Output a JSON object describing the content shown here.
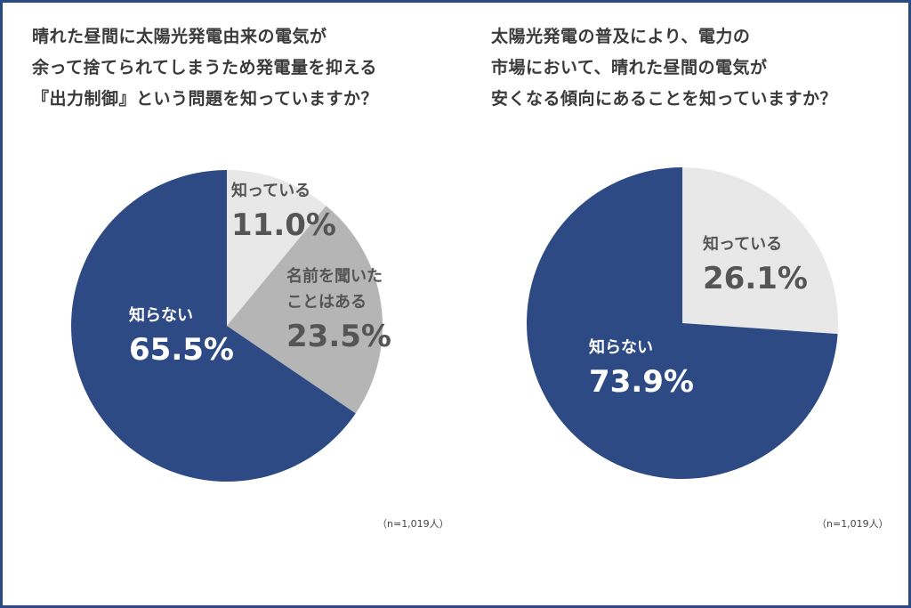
{
  "colors": {
    "border": "#2b4a84",
    "navy": "#2d4a85",
    "grey": "#b5b5b5",
    "light": "#e8e8e8",
    "label_dark": "#555555",
    "label_light": "#ffffff"
  },
  "chart_data": [
    {
      "type": "pie",
      "title_lines": [
        "晴れた昼間に太陽光発電由来の電気が",
        "余って捨てられてしまうため発電量を抑える",
        "『出力制御』という問題を知っていますか？"
      ],
      "note": "（n=1,019人）",
      "start": "12 o'clock",
      "direction": "clockwise",
      "slices": [
        {
          "label_lines": [
            "知っている"
          ],
          "value": 11.0,
          "value_label": "11.0%",
          "color": "#e8e8e8"
        },
        {
          "label_lines": [
            "名前を聞いた",
            "ことはある"
          ],
          "value": 23.5,
          "value_label": "23.5%",
          "color": "#b5b5b5"
        },
        {
          "label_lines": [
            "知らない"
          ],
          "value": 65.5,
          "value_label": "65.5%",
          "color": "#2d4a85"
        }
      ]
    },
    {
      "type": "pie",
      "title_lines": [
        "太陽光発電の普及により、電力の",
        "市場において、晴れた昼間の電気が",
        "安くなる傾向にあることを知っていますか？"
      ],
      "note": "（n=1,019人）",
      "start": "12 o'clock",
      "direction": "clockwise",
      "slices": [
        {
          "label_lines": [
            "知っている"
          ],
          "value": 26.1,
          "value_label": "26.1%",
          "color": "#e8e8e8"
        },
        {
          "label_lines": [
            "知らない"
          ],
          "value": 73.9,
          "value_label": "73.9%",
          "color": "#2d4a85"
        }
      ]
    }
  ]
}
